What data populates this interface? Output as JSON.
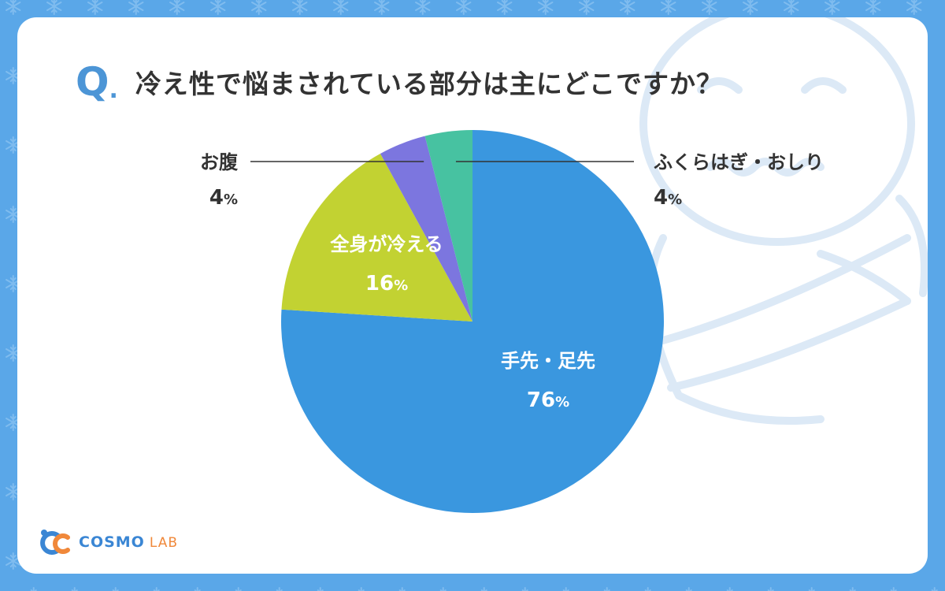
{
  "header": {
    "q_mark": "Q",
    "q_dot": ".",
    "title": "冷え性で悩まされている部分は主にどこですか？"
  },
  "colors": {
    "background": "#5aa7e8",
    "card": "#ffffff",
    "accent": "#4c95d6",
    "slice_hands_feet": "#3a97df",
    "slice_whole_body": "#c2d232",
    "slice_belly": "#7c76df",
    "slice_calves": "#47c2a1"
  },
  "chart_data": {
    "type": "pie",
    "title": "冷え性で悩まされている部分は主にどこですか？",
    "start_angle_deg": 0,
    "direction": "clockwise",
    "slices": [
      {
        "label": "手先・足先",
        "value": 76,
        "value_text": "76",
        "unit": "%",
        "color": "#3a97df",
        "label_position": "inside",
        "label_color": "#ffffff"
      },
      {
        "label": "全身が冷える",
        "value": 16,
        "value_text": "16",
        "unit": "%",
        "color": "#c2d232",
        "label_position": "inside",
        "label_color": "#ffffff"
      },
      {
        "label": "お腹",
        "value": 4,
        "value_text": "4",
        "unit": "%",
        "color": "#7c76df",
        "label_position": "outside-left",
        "label_color": "#333333"
      },
      {
        "label": "ふくらはぎ・おしり",
        "value": 4,
        "value_text": "4",
        "unit": "%",
        "color": "#47c2a1",
        "label_position": "outside-right",
        "label_color": "#333333"
      }
    ]
  },
  "footer": {
    "logo_main": "COSMO",
    "logo_sub": "LAB",
    "logo_icon": "cosmo-lab-logo-icon"
  }
}
